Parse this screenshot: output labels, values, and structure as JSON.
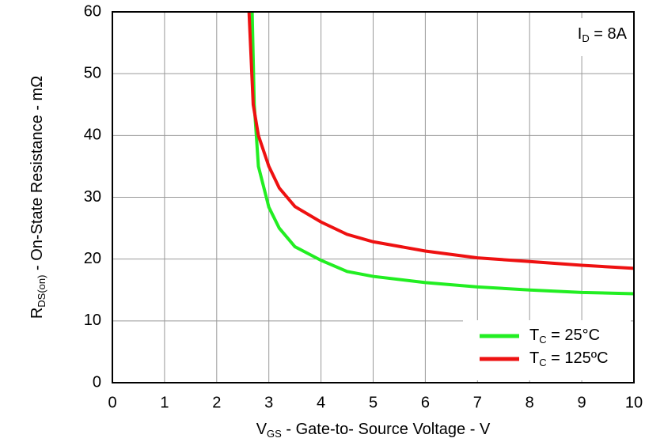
{
  "chart_data": {
    "type": "line",
    "x_label": {
      "base": "V",
      "sub": "GS",
      "rest": " - Gate-to- Source Voltage - V"
    },
    "y_label": {
      "base": "R",
      "sub": "DS(on)",
      "rest": " - On-State Resistance - mΩ"
    },
    "annotation": {
      "base": "I",
      "sub": "D",
      "rest": " = 8A"
    },
    "xlim": [
      0,
      10
    ],
    "xticks": [
      0,
      1,
      2,
      3,
      4,
      5,
      6,
      7,
      8,
      9,
      10
    ],
    "ylim": [
      0,
      60
    ],
    "yticks": [
      0,
      10,
      20,
      30,
      40,
      50,
      60
    ],
    "grid": true,
    "legend": "lower right",
    "x": [
      2.68,
      2.72,
      2.8,
      3.0,
      3.2,
      3.5,
      4,
      4.5,
      5,
      6,
      7,
      8,
      9,
      10
    ],
    "series": [
      {
        "name": {
          "base": "T",
          "sub": "C",
          "rest": " = 25°C"
        },
        "color": "#22ee22",
        "x": [
          2.68,
          2.72,
          2.8,
          3.0,
          3.2,
          3.5,
          4,
          4.5,
          5,
          6,
          7,
          8,
          9,
          10
        ],
        "values": [
          60,
          45,
          35,
          28.4,
          25,
          22,
          19.8,
          18,
          17.2,
          16.2,
          15.5,
          15,
          14.6,
          14.4
        ]
      },
      {
        "name": {
          "base": "T",
          "sub": "C",
          "rest": " = 125ºC"
        },
        "color": "#ee1111",
        "x": [
          2.62,
          2.7,
          2.8,
          3.0,
          3.2,
          3.5,
          4,
          4.5,
          5,
          6,
          7,
          8,
          9,
          10
        ],
        "values": [
          60,
          45,
          40,
          35,
          31.5,
          28.5,
          26,
          24,
          22.8,
          21.3,
          20.2,
          19.6,
          19,
          18.5
        ]
      }
    ]
  }
}
